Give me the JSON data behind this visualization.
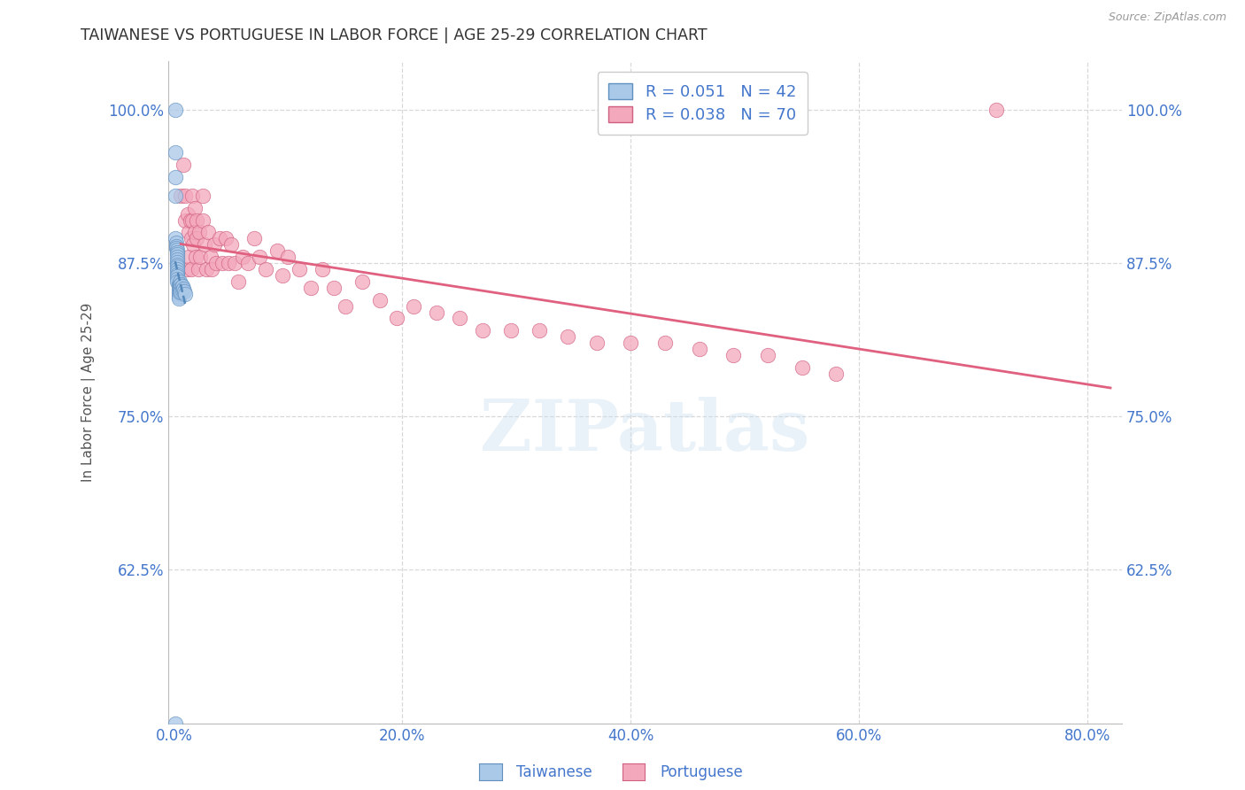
{
  "title": "TAIWANESE VS PORTUGUESE IN LABOR FORCE | AGE 25-29 CORRELATION CHART",
  "source": "Source: ZipAtlas.com",
  "ylabel": "In Labor Force | Age 25-29",
  "x_tick_labels": [
    "0.0%",
    "20.0%",
    "40.0%",
    "60.0%",
    "80.0%"
  ],
  "x_tick_values": [
    0.0,
    0.2,
    0.4,
    0.6,
    0.8
  ],
  "y_tick_labels": [
    "62.5%",
    "75.0%",
    "87.5%",
    "100.0%"
  ],
  "y_tick_values": [
    0.625,
    0.75,
    0.875,
    1.0
  ],
  "xlim": [
    -0.005,
    0.83
  ],
  "ylim": [
    0.5,
    1.04
  ],
  "taiwanese_color": "#aac8e8",
  "portuguese_color": "#f4a8bc",
  "taiwanese_edge": "#6090c0",
  "portuguese_edge": "#d06080",
  "reg_taiwanese_color": "#5588bb",
  "reg_portuguese_color": "#e06080",
  "grid_color": "#d8d8d8",
  "title_color": "#333333",
  "tick_label_color": "#4477cc",
  "source_color": "#999999",
  "tw_R": "0.051",
  "tw_N": "42",
  "pt_R": "0.038",
  "pt_N": "70",
  "watermark": "ZIPatlas",
  "tw_x": [
    0.001,
    0.001,
    0.001,
    0.001,
    0.001,
    0.002,
    0.002,
    0.002,
    0.003,
    0.003,
    0.003,
    0.003,
    0.003,
    0.003,
    0.003,
    0.003,
    0.003,
    0.003,
    0.003,
    0.003,
    0.003,
    0.003,
    0.004,
    0.004,
    0.004,
    0.004,
    0.004,
    0.004,
    0.004,
    0.005,
    0.005,
    0.005,
    0.005,
    0.006,
    0.006,
    0.006,
    0.007,
    0.007,
    0.008,
    0.009,
    0.01,
    0.001
  ],
  "tw_y": [
    1.0,
    0.965,
    0.945,
    0.93,
    0.895,
    0.892,
    0.889,
    0.887,
    0.886,
    0.884,
    0.882,
    0.88,
    0.878,
    0.876,
    0.874,
    0.872,
    0.87,
    0.868,
    0.866,
    0.864,
    0.862,
    0.86,
    0.858,
    0.856,
    0.854,
    0.852,
    0.85,
    0.848,
    0.846,
    0.86,
    0.857,
    0.854,
    0.851,
    0.858,
    0.855,
    0.852,
    0.856,
    0.853,
    0.854,
    0.852,
    0.85,
    0.5
  ],
  "pt_x": [
    0.006,
    0.008,
    0.01,
    0.01,
    0.011,
    0.012,
    0.013,
    0.013,
    0.014,
    0.015,
    0.015,
    0.016,
    0.016,
    0.017,
    0.018,
    0.018,
    0.019,
    0.02,
    0.02,
    0.021,
    0.022,
    0.023,
    0.025,
    0.025,
    0.027,
    0.028,
    0.03,
    0.032,
    0.033,
    0.035,
    0.037,
    0.04,
    0.042,
    0.045,
    0.048,
    0.05,
    0.053,
    0.056,
    0.06,
    0.065,
    0.07,
    0.075,
    0.08,
    0.09,
    0.095,
    0.1,
    0.11,
    0.12,
    0.13,
    0.14,
    0.15,
    0.165,
    0.18,
    0.195,
    0.21,
    0.23,
    0.25,
    0.27,
    0.295,
    0.32,
    0.345,
    0.37,
    0.4,
    0.43,
    0.46,
    0.49,
    0.52,
    0.55,
    0.58,
    0.72
  ],
  "pt_y": [
    0.93,
    0.955,
    0.93,
    0.91,
    0.87,
    0.915,
    0.9,
    0.88,
    0.91,
    0.895,
    0.87,
    0.93,
    0.91,
    0.89,
    0.92,
    0.9,
    0.88,
    0.91,
    0.895,
    0.87,
    0.9,
    0.88,
    0.93,
    0.91,
    0.89,
    0.87,
    0.9,
    0.88,
    0.87,
    0.89,
    0.875,
    0.895,
    0.875,
    0.895,
    0.875,
    0.89,
    0.875,
    0.86,
    0.88,
    0.875,
    0.895,
    0.88,
    0.87,
    0.885,
    0.865,
    0.88,
    0.87,
    0.855,
    0.87,
    0.855,
    0.84,
    0.86,
    0.845,
    0.83,
    0.84,
    0.835,
    0.83,
    0.82,
    0.82,
    0.82,
    0.815,
    0.81,
    0.81,
    0.81,
    0.805,
    0.8,
    0.8,
    0.79,
    0.785,
    1.0
  ]
}
